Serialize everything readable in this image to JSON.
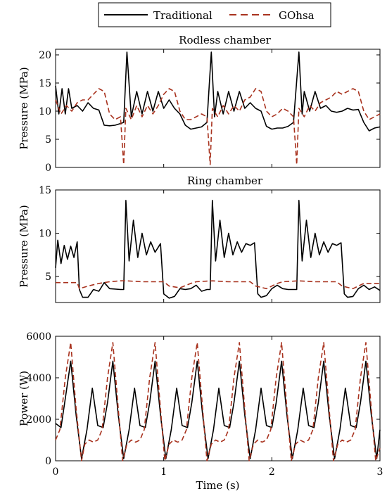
{
  "legend": {
    "traditional": "Traditional",
    "gohsa": "GOhsa",
    "colors": {
      "traditional": "#000000",
      "gohsa": "#a8321e"
    }
  },
  "chart_data": [
    {
      "type": "line",
      "title": "Rodless chamber",
      "xlabel": "",
      "ylabel": "Pressure (MPa)",
      "xlim": [
        0,
        3
      ],
      "ylim": [
        0,
        21
      ],
      "yticks": [
        "0",
        "5",
        "10",
        "15",
        "20"
      ],
      "xticks": [
        "0",
        "1",
        "2",
        "3"
      ],
      "series": [
        {
          "name": "Traditional",
          "x": [
            0,
            0.03,
            0.06,
            0.09,
            0.12,
            0.15,
            0.2,
            0.25,
            0.3,
            0.35,
            0.4,
            0.45,
            0.5,
            0.55,
            0.6,
            0.63,
            0.66,
            0.7,
            0.75,
            0.8,
            0.85,
            0.9,
            0.95,
            1.0,
            1.05,
            1.1,
            1.15,
            1.2,
            1.25,
            1.3,
            1.35,
            1.4,
            1.44,
            1.47,
            1.5,
            1.55,
            1.6,
            1.65,
            1.7,
            1.75,
            1.8,
            1.85,
            1.9,
            1.95,
            2.0,
            2.05,
            2.1,
            2.15,
            2.2,
            2.25,
            2.28,
            2.3,
            2.35,
            2.4,
            2.45,
            2.5,
            2.55,
            2.6,
            2.65,
            2.7,
            2.75,
            2.8,
            2.85,
            2.9,
            2.95,
            3.0
          ],
          "y": [
            14.5,
            9.5,
            14,
            9.5,
            14,
            10.5,
            11,
            10,
            11.5,
            10.5,
            10.2,
            7.5,
            7.4,
            7.5,
            7.8,
            8.0,
            20.5,
            9.0,
            13.5,
            9.5,
            13.5,
            10,
            13.5,
            10.5,
            12,
            10.5,
            9.5,
            7.5,
            6.8,
            7.0,
            7.2,
            8.0,
            20.5,
            9,
            13.5,
            9.5,
            13.5,
            10,
            13.5,
            10.5,
            11.5,
            10.5,
            10,
            7.3,
            6.8,
            7.0,
            7.0,
            7.3,
            8.0,
            20.5,
            9.5,
            13.5,
            10,
            13.5,
            10.5,
            11,
            10,
            9.8,
            10.0,
            10.5,
            10.2,
            10.3,
            8.0,
            6.5,
            7.0,
            7.2
          ]
        },
        {
          "name": "GOhsa",
          "x": [
            0,
            0.05,
            0.1,
            0.15,
            0.2,
            0.25,
            0.3,
            0.35,
            0.4,
            0.45,
            0.5,
            0.55,
            0.6,
            0.63,
            0.65,
            0.7,
            0.75,
            0.8,
            0.85,
            0.9,
            0.95,
            1.0,
            1.05,
            1.1,
            1.15,
            1.2,
            1.25,
            1.3,
            1.35,
            1.4,
            1.43,
            1.45,
            1.5,
            1.55,
            1.6,
            1.65,
            1.7,
            1.75,
            1.8,
            1.85,
            1.9,
            1.95,
            2.0,
            2.05,
            2.1,
            2.15,
            2.2,
            2.23,
            2.25,
            2.3,
            2.35,
            2.4,
            2.45,
            2.5,
            2.55,
            2.6,
            2.65,
            2.7,
            2.75,
            2.8,
            2.85,
            2.9,
            2.95,
            3.0
          ],
          "y": [
            12,
            9.5,
            11,
            10,
            11.5,
            12,
            12,
            13,
            14,
            13.5,
            9.5,
            8.5,
            9.0,
            0.5,
            10.5,
            8.5,
            11,
            9,
            11,
            9.5,
            11,
            13,
            14,
            13.5,
            10,
            8.5,
            8.5,
            9,
            9.5,
            9.0,
            0.5,
            10.5,
            9,
            11,
            9.5,
            11,
            10,
            12,
            12.5,
            14,
            13.5,
            10,
            9.0,
            9.5,
            10.5,
            10,
            9.0,
            0.5,
            10.5,
            9,
            11,
            10,
            11.5,
            12,
            12.5,
            13.5,
            13,
            13.5,
            14,
            13.5,
            10,
            8.5,
            9,
            9.5
          ]
        }
      ]
    },
    {
      "type": "line",
      "title": "Ring chamber",
      "xlabel": "",
      "ylabel": "Pressure (MPa)",
      "xlim": [
        0,
        3
      ],
      "ylim": [
        2,
        15
      ],
      "yticks": [
        "5",
        "10",
        "15"
      ],
      "xticks": [
        "0",
        "1",
        "2",
        "3"
      ],
      "series": [
        {
          "name": "Traditional",
          "x": [
            0,
            0.02,
            0.05,
            0.08,
            0.11,
            0.14,
            0.17,
            0.2,
            0.22,
            0.25,
            0.3,
            0.35,
            0.4,
            0.45,
            0.5,
            0.6,
            0.63,
            0.65,
            0.68,
            0.72,
            0.76,
            0.8,
            0.84,
            0.88,
            0.92,
            0.97,
            1.0,
            1.05,
            1.1,
            1.15,
            1.2,
            1.25,
            1.3,
            1.35,
            1.4,
            1.43,
            1.45,
            1.48,
            1.52,
            1.56,
            1.6,
            1.64,
            1.68,
            1.72,
            1.76,
            1.8,
            1.84,
            1.87,
            1.9,
            1.95,
            2.0,
            2.05,
            2.1,
            2.15,
            2.2,
            2.23,
            2.25,
            2.28,
            2.32,
            2.36,
            2.4,
            2.44,
            2.48,
            2.52,
            2.56,
            2.6,
            2.64,
            2.67,
            2.7,
            2.75,
            2.8,
            2.85,
            2.9,
            2.95,
            3.0
          ],
          "y": [
            6,
            9.2,
            6.5,
            8.6,
            7.0,
            8.5,
            7.2,
            9.0,
            3.5,
            2.6,
            2.6,
            3.5,
            3.3,
            4.3,
            3.6,
            3.5,
            3.5,
            13.8,
            6.8,
            11.5,
            7.2,
            10.0,
            7.5,
            9.0,
            7.8,
            8.8,
            3.0,
            2.5,
            2.7,
            3.6,
            3.5,
            3.6,
            4.0,
            3.3,
            3.5,
            3.5,
            13.8,
            6.8,
            11.5,
            7.2,
            10.0,
            7.5,
            9.0,
            7.8,
            8.8,
            8.6,
            8.9,
            3.0,
            2.6,
            2.8,
            3.6,
            4.0,
            3.6,
            3.5,
            3.5,
            3.5,
            13.8,
            6.8,
            11.5,
            7.2,
            10.0,
            7.5,
            9.0,
            7.8,
            8.8,
            8.6,
            8.9,
            3.0,
            2.6,
            2.7,
            3.6,
            4.0,
            3.5,
            3.8,
            3.4
          ]
        },
        {
          "name": "GOhsa",
          "x": [
            0,
            0.2,
            0.22,
            0.3,
            0.4,
            0.5,
            0.6,
            0.65,
            0.8,
            1.0,
            1.05,
            1.15,
            1.25,
            1.3,
            1.45,
            1.6,
            1.8,
            1.85,
            1.95,
            2.05,
            2.1,
            2.25,
            2.4,
            2.6,
            2.65,
            2.75,
            2.85,
            3.0
          ],
          "y": [
            4.3,
            4.3,
            3.6,
            3.9,
            4.2,
            4.4,
            4.5,
            4.5,
            4.4,
            4.4,
            3.9,
            3.7,
            4.2,
            4.4,
            4.5,
            4.4,
            4.4,
            3.9,
            3.6,
            4.2,
            4.4,
            4.5,
            4.4,
            4.4,
            3.9,
            3.6,
            4.2,
            4.2
          ]
        }
      ]
    },
    {
      "type": "line",
      "title": "",
      "xlabel": "Time (s)",
      "ylabel": "Power (W)",
      "xlim": [
        0,
        3
      ],
      "ylim": [
        0,
        6000
      ],
      "yticks": [
        "0",
        "2000",
        "4000",
        "6000"
      ],
      "xticks": [
        "0",
        "1",
        "2",
        "3"
      ],
      "series": [
        {
          "name": "Traditional",
          "x": [
            0,
            0.05,
            0.09,
            0.14,
            0.19,
            0.24,
            0.29,
            0.34,
            0.39,
            0.44,
            0.48,
            0.53,
            0.58,
            0.63,
            0.68,
            0.73,
            0.78,
            0.83,
            0.87,
            0.92,
            0.97,
            1.02,
            1.07,
            1.12,
            1.17,
            1.22,
            1.26,
            1.31,
            1.36,
            1.41,
            1.46,
            1.51,
            1.56,
            1.61,
            1.65,
            1.7,
            1.75,
            1.8,
            1.85,
            1.9,
            1.95,
            2.0,
            2.04,
            2.09,
            2.14,
            2.19,
            2.24,
            2.29,
            2.34,
            2.39,
            2.43,
            2.48,
            2.53,
            2.58,
            2.63,
            2.68,
            2.73,
            2.78,
            2.82,
            2.87,
            2.92,
            2.97,
            3.0
          ],
          "y": [
            1800,
            1600,
            3000,
            4800,
            2200,
            100,
            1500,
            3500,
            1700,
            1600,
            2800,
            4800,
            2200,
            100,
            1500,
            3500,
            1700,
            1600,
            2800,
            4800,
            2200,
            100,
            1500,
            3500,
            1700,
            1600,
            2800,
            4800,
            2200,
            100,
            1500,
            3500,
            1700,
            1600,
            2800,
            4800,
            2200,
            100,
            1500,
            3500,
            1700,
            1600,
            2800,
            4800,
            2200,
            100,
            1500,
            3500,
            1700,
            1600,
            2800,
            4800,
            2200,
            100,
            1500,
            3500,
            1700,
            1600,
            2800,
            4800,
            2200,
            100,
            1500
          ]
        },
        {
          "name": "GOhsa",
          "x": [
            0,
            0.04,
            0.09,
            0.14,
            0.19,
            0.24,
            0.27,
            0.31,
            0.35,
            0.39,
            0.43,
            0.48,
            0.53,
            0.58,
            0.62,
            0.66,
            0.7,
            0.74,
            0.78,
            0.82,
            0.87,
            0.92,
            0.97,
            1.01,
            1.05,
            1.09,
            1.13,
            1.17,
            1.21,
            1.26,
            1.31,
            1.36,
            1.4,
            1.44,
            1.48,
            1.52,
            1.56,
            1.6,
            1.65,
            1.7,
            1.75,
            1.79,
            1.83,
            1.87,
            1.91,
            1.95,
            1.99,
            2.04,
            2.09,
            2.14,
            2.18,
            2.22,
            2.26,
            2.3,
            2.34,
            2.38,
            2.43,
            2.48,
            2.53,
            2.57,
            2.61,
            2.65,
            2.69,
            2.73,
            2.77,
            2.82,
            2.87,
            2.92,
            2.96,
            3.0
          ],
          "y": [
            1000,
            1500,
            4000,
            5700,
            2500,
            0,
            800,
            1000,
            900,
            1000,
            1500,
            4000,
            5700,
            2500,
            0,
            800,
            1000,
            900,
            1000,
            1500,
            4000,
            5700,
            2500,
            0,
            800,
            1000,
            900,
            1000,
            1500,
            4000,
            5700,
            2500,
            0,
            800,
            1000,
            900,
            1000,
            1500,
            4000,
            5700,
            2500,
            0,
            800,
            1000,
            900,
            1000,
            1500,
            4000,
            5700,
            2500,
            0,
            800,
            1000,
            900,
            1000,
            1500,
            4000,
            5700,
            2500,
            0,
            800,
            1000,
            900,
            1000,
            1500,
            4000,
            5700,
            2500,
            0,
            600
          ]
        }
      ]
    }
  ]
}
